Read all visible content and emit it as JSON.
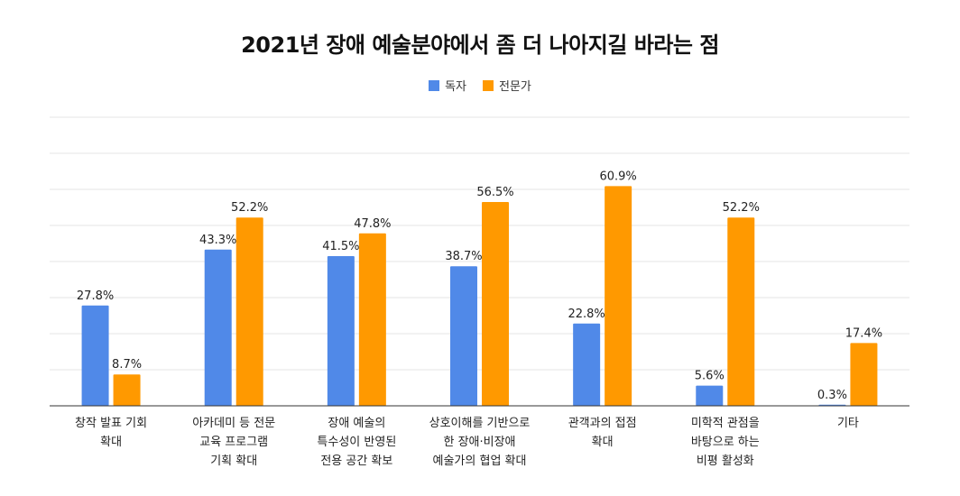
{
  "chart_data": {
    "type": "bar",
    "title": "2021년 장애 예술분야에서 좀 더 나아지길 바라는 점",
    "categories": [
      [
        "창작 발표 기회",
        "확대"
      ],
      [
        "아카데미 등 전문",
        "교육 프로그램",
        "기획 확대"
      ],
      [
        "장애 예술의",
        "특수성이 반영된",
        "전용 공간 확보"
      ],
      [
        "상호이해를 기반으로",
        "한 장애·비장애",
        "예술가의 협업 확대"
      ],
      [
        "관객과의 접점",
        "확대"
      ],
      [
        "미학적 관점을",
        "바탕으로 하는",
        "비평 활성화"
      ],
      [
        "기타"
      ]
    ],
    "series": [
      {
        "name": "독자",
        "color": "#5089e8",
        "values": [
          27.8,
          43.3,
          41.5,
          38.7,
          22.8,
          5.6,
          0.3
        ],
        "labels": [
          "27.8%",
          "43.3%",
          "41.5%",
          "38.7%",
          "22.8%",
          "5.6%",
          "0.3%"
        ]
      },
      {
        "name": "전문가",
        "color": "#ff9900",
        "values": [
          8.7,
          52.2,
          47.8,
          56.5,
          60.9,
          52.2,
          17.4
        ],
        "labels": [
          "8.7%",
          "52.2%",
          "47.8%",
          "56.5%",
          "60.9%",
          "52.2%",
          "17.4%"
        ]
      }
    ],
    "ylim": [
      0,
      80
    ],
    "grid": true,
    "legend": "top-center"
  }
}
